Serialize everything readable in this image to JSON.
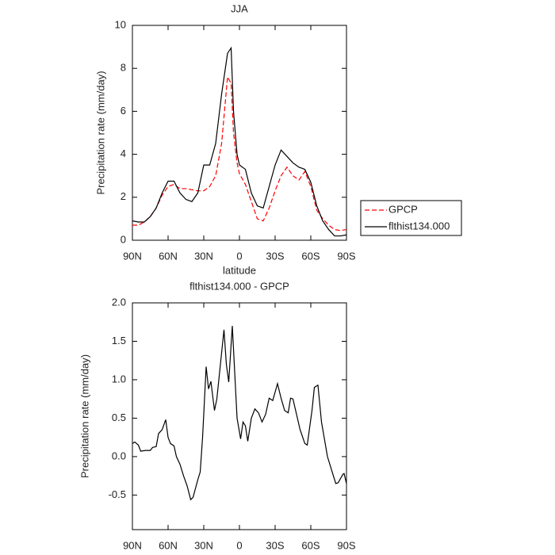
{
  "chart_data": [
    {
      "type": "line",
      "title": "JJA",
      "x_label": "latitude",
      "y_label": "Precipitation rate (mm/day)",
      "x": [
        90,
        85,
        80,
        75,
        70,
        65,
        60,
        55,
        50,
        45,
        40,
        35,
        30,
        25,
        20,
        15,
        10,
        7,
        5,
        2,
        0,
        -5,
        -10,
        -15,
        -20,
        -25,
        -30,
        -35,
        -40,
        -45,
        -50,
        -55,
        -60,
        -65,
        -70,
        -75,
        -80,
        -85,
        -90
      ],
      "series": [
        {
          "name": "GPCP",
          "color": "#ff0000",
          "line_style": "dashed",
          "values": [
            0.7,
            0.7,
            0.85,
            1.1,
            1.5,
            2.1,
            2.5,
            2.6,
            2.4,
            2.4,
            2.35,
            2.3,
            2.3,
            2.5,
            3.0,
            4.5,
            7.6,
            7.3,
            5.0,
            3.6,
            3.1,
            2.6,
            1.8,
            1.0,
            0.9,
            1.5,
            2.3,
            3.0,
            3.4,
            3.0,
            2.8,
            3.2,
            2.5,
            1.4,
            1.0,
            0.7,
            0.5,
            0.45,
            0.5
          ]
        },
        {
          "name": "flthist134.000",
          "color": "#000000",
          "line_style": "solid",
          "values": [
            0.9,
            0.85,
            0.85,
            1.1,
            1.5,
            2.2,
            2.75,
            2.75,
            2.2,
            1.9,
            1.8,
            2.2,
            3.5,
            3.5,
            4.5,
            6.8,
            8.7,
            8.95,
            6.0,
            4.0,
            3.5,
            3.3,
            2.2,
            1.6,
            1.5,
            2.5,
            3.5,
            4.2,
            3.9,
            3.6,
            3.4,
            3.3,
            2.7,
            1.6,
            0.9,
            0.5,
            0.2,
            0.2,
            0.25
          ]
        }
      ],
      "xlim": [
        90,
        -90
      ],
      "xticks": [
        {
          "value": 90,
          "label": "90N"
        },
        {
          "value": 60,
          "label": "60N"
        },
        {
          "value": 30,
          "label": "30N"
        },
        0,
        {
          "value": -30,
          "label": "30S"
        },
        {
          "value": -60,
          "label": "60S"
        },
        {
          "value": -90,
          "label": "90S"
        }
      ],
      "ylim": [
        0,
        10
      ],
      "yticks": [
        0,
        2,
        4,
        6,
        8,
        10
      ],
      "legend": "right",
      "grid": false
    },
    {
      "type": "line",
      "title": "flthist134.000 - GPCP",
      "x_label": "latitude",
      "y_label": "Precipitation rate (mm/day)",
      "x": [
        90,
        88,
        85,
        83,
        79,
        75,
        73,
        70,
        68,
        65,
        62,
        60,
        58,
        55,
        53,
        50,
        47,
        44,
        41,
        39,
        35,
        33,
        31,
        28,
        26,
        24,
        21,
        19,
        13,
        11,
        9,
        6,
        2,
        -1,
        -3,
        -5,
        -7,
        -10,
        -13,
        -16,
        -19,
        -22,
        -25,
        -28,
        -32,
        -35,
        -38,
        -41,
        -43,
        -45,
        -51,
        -55,
        -57,
        -61,
        -63,
        -66,
        -69,
        -74,
        -79,
        -81,
        -83,
        -87,
        -88,
        -90
      ],
      "values": [
        0.17,
        0.19,
        0.15,
        0.07,
        0.08,
        0.08,
        0.12,
        0.13,
        0.3,
        0.35,
        0.48,
        0.25,
        0.17,
        0.14,
        0.0,
        -0.1,
        -0.25,
        -0.38,
        -0.56,
        -0.53,
        -0.3,
        -0.2,
        0.25,
        1.17,
        0.88,
        0.98,
        0.6,
        0.75,
        1.65,
        1.2,
        0.97,
        1.7,
        0.5,
        0.23,
        0.45,
        0.4,
        0.2,
        0.5,
        0.62,
        0.57,
        0.45,
        0.55,
        0.76,
        0.73,
        0.95,
        0.76,
        0.6,
        0.57,
        0.76,
        0.75,
        0.35,
        0.17,
        0.15,
        0.6,
        0.9,
        0.93,
        0.45,
        0.0,
        -0.25,
        -0.35,
        -0.34,
        -0.23,
        -0.22,
        -0.35
      ],
      "color": "#000000",
      "xlim": [
        90,
        -90
      ],
      "xticks": [
        {
          "value": 90,
          "label": "90N"
        },
        {
          "value": 60,
          "label": "60N"
        },
        {
          "value": 30,
          "label": "30N"
        },
        0,
        {
          "value": -30,
          "label": "30S"
        },
        {
          "value": -60,
          "label": "60S"
        },
        {
          "value": -90,
          "label": "90S"
        }
      ],
      "ylim": [
        -0.95,
        2.0
      ],
      "yticks": [
        {
          "value": -0.5,
          "label": "-0.5"
        },
        {
          "value": 0,
          "label": "0.0"
        },
        0.5,
        {
          "value": 1,
          "label": "1.0"
        },
        1.5,
        {
          "value": 2,
          "label": "2.0"
        }
      ],
      "grid": false
    }
  ]
}
